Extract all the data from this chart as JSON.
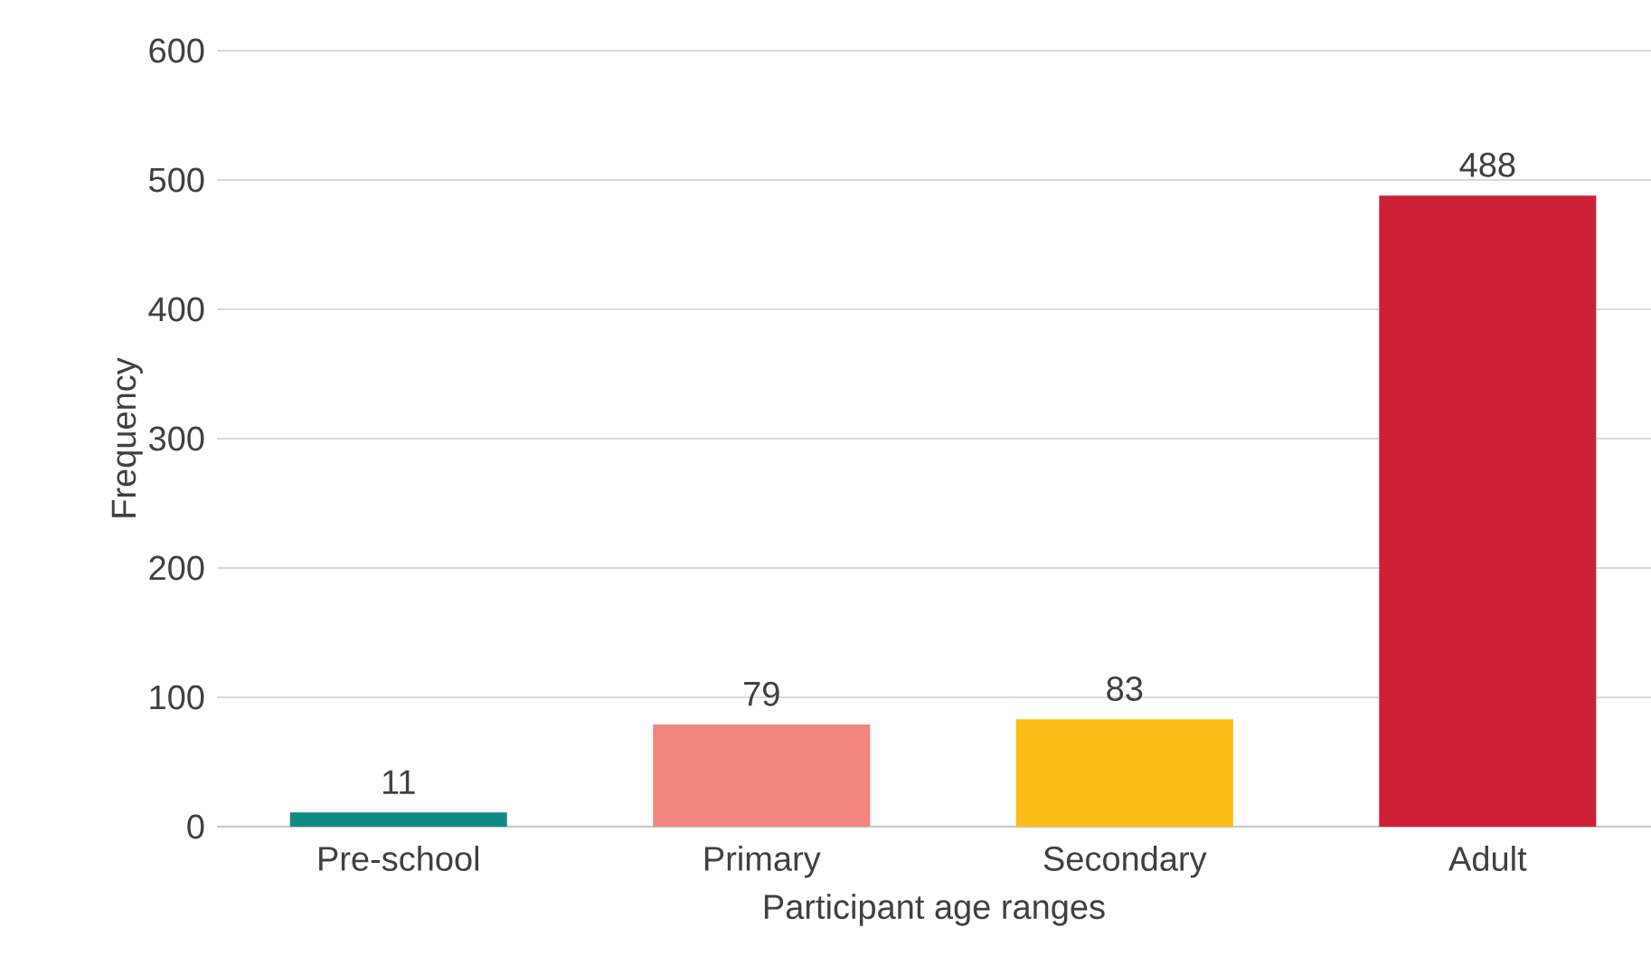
{
  "chart_data": {
    "type": "bar",
    "categories": [
      "Pre-school",
      "Primary",
      "Secondary",
      "Adult"
    ],
    "values": [
      11,
      79,
      83,
      488
    ],
    "colors": [
      "#0f8a84",
      "#f3857d",
      "#fbbd15",
      "#cc2037"
    ],
    "xlabel": "Participant age ranges",
    "ylabel": "Frequency",
    "ylim": [
      0,
      600
    ],
    "yticks": [
      0,
      100,
      200,
      300,
      400,
      500,
      600
    ],
    "grid": "y",
    "data_labels": true
  }
}
